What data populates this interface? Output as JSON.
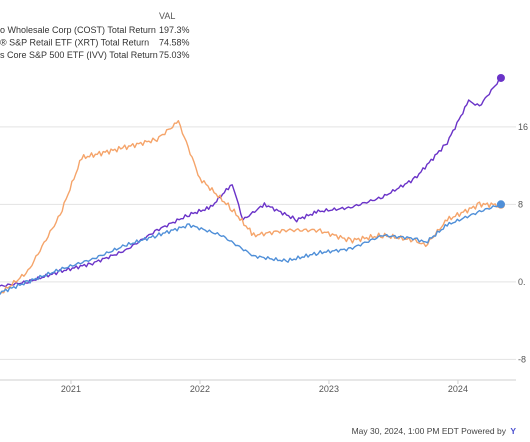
{
  "legend": {
    "header": "VAL",
    "entries": [
      {
        "label": "o Wholesale Corp (COST) Total Return",
        "value": "197.3%",
        "color": "#6a33c8"
      },
      {
        "label": "® S&P Retail ETF (XRT) Total Return",
        "value": "74.58%",
        "color": "#f5a46a"
      },
      {
        "label": "s Core S&P 500 ETF (IVV) Total Return",
        "value": "75.03%",
        "color": "#4f8fd8"
      }
    ]
  },
  "footer": {
    "timestamp": "May 30, 2024, 1:00 PM EDT",
    "powered_by": "Powered by",
    "brand": "Y"
  },
  "chart_data": {
    "type": "line",
    "x_axis": {
      "ticks": [
        "2021",
        "2022",
        "2023",
        "2024"
      ]
    },
    "y_axis_visible_labels": [
      "16",
      "8",
      "0.",
      "-8"
    ],
    "grid": "horizontal",
    "legend_position": "top-left",
    "series": [
      {
        "name": "o Wholesale Corp (COST) Total Return",
        "color": "#6a33c8",
        "end_value": "197.3%",
        "points": [
          [
            "2020-06",
            -5
          ],
          [
            "2020-09",
            0
          ],
          [
            "2020-12",
            10
          ],
          [
            "2021-03",
            18
          ],
          [
            "2021-06",
            30
          ],
          [
            "2021-09",
            50
          ],
          [
            "2021-12",
            65
          ],
          [
            "2022-02",
            72
          ],
          [
            "2022-04",
            95
          ],
          [
            "2022-05",
            60
          ],
          [
            "2022-07",
            75
          ],
          [
            "2022-10",
            60
          ],
          [
            "2022-12",
            68
          ],
          [
            "2023-03",
            72
          ],
          [
            "2023-06",
            82
          ],
          [
            "2023-09",
            100
          ],
          [
            "2023-12",
            135
          ],
          [
            "2024-02",
            175
          ],
          [
            "2024-03",
            170
          ],
          [
            "2024-05",
            197.3
          ]
        ]
      },
      {
        "name": "® S&P Retail ETF (XRT) Total Return",
        "color": "#f5a46a",
        "end_value": "74.58%",
        "points": [
          [
            "2020-06",
            -15
          ],
          [
            "2020-09",
            10
          ],
          [
            "2020-12",
            65
          ],
          [
            "2021-02",
            120
          ],
          [
            "2021-06",
            130
          ],
          [
            "2021-09",
            138
          ],
          [
            "2021-11",
            155
          ],
          [
            "2022-01",
            100
          ],
          [
            "2022-04",
            70
          ],
          [
            "2022-06",
            45
          ],
          [
            "2022-09",
            50
          ],
          [
            "2022-12",
            50
          ],
          [
            "2023-03",
            40
          ],
          [
            "2023-06",
            45
          ],
          [
            "2023-09",
            40
          ],
          [
            "2023-10",
            35
          ],
          [
            "2023-12",
            60
          ],
          [
            "2024-03",
            75
          ],
          [
            "2024-05",
            74.58
          ]
        ]
      },
      {
        "name": "s Core S&P 500 ETF (IVV) Total Return",
        "color": "#4f8fd8",
        "end_value": "75.03%",
        "points": [
          [
            "2020-06",
            -12
          ],
          [
            "2020-09",
            0
          ],
          [
            "2020-12",
            12
          ],
          [
            "2021-03",
            22
          ],
          [
            "2021-06",
            35
          ],
          [
            "2021-09",
            45
          ],
          [
            "2021-12",
            55
          ],
          [
            "2022-03",
            45
          ],
          [
            "2022-06",
            25
          ],
          [
            "2022-09",
            20
          ],
          [
            "2022-12",
            28
          ],
          [
            "2023-03",
            32
          ],
          [
            "2023-06",
            45
          ],
          [
            "2023-09",
            42
          ],
          [
            "2023-10",
            38
          ],
          [
            "2023-12",
            55
          ],
          [
            "2024-03",
            68
          ],
          [
            "2024-05",
            75.03
          ]
        ]
      }
    ]
  }
}
